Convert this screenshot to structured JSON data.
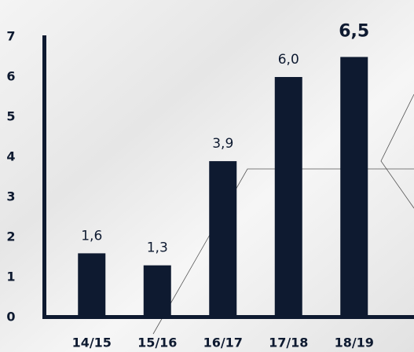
{
  "chart_data": {
    "type": "bar",
    "categories": [
      "14/15",
      "15/16",
      "16/17",
      "17/18",
      "18/19"
    ],
    "values": [
      1.6,
      1.3,
      3.9,
      6.0,
      6.5
    ],
    "value_labels": [
      "1,6",
      "1,3",
      "3,9",
      "6,0",
      "6,5"
    ],
    "color": "#0e1a30",
    "ylim": [
      0,
      7
    ],
    "yticks": [
      0,
      1,
      2,
      3,
      4,
      5,
      6,
      7
    ],
    "grid": false
  }
}
